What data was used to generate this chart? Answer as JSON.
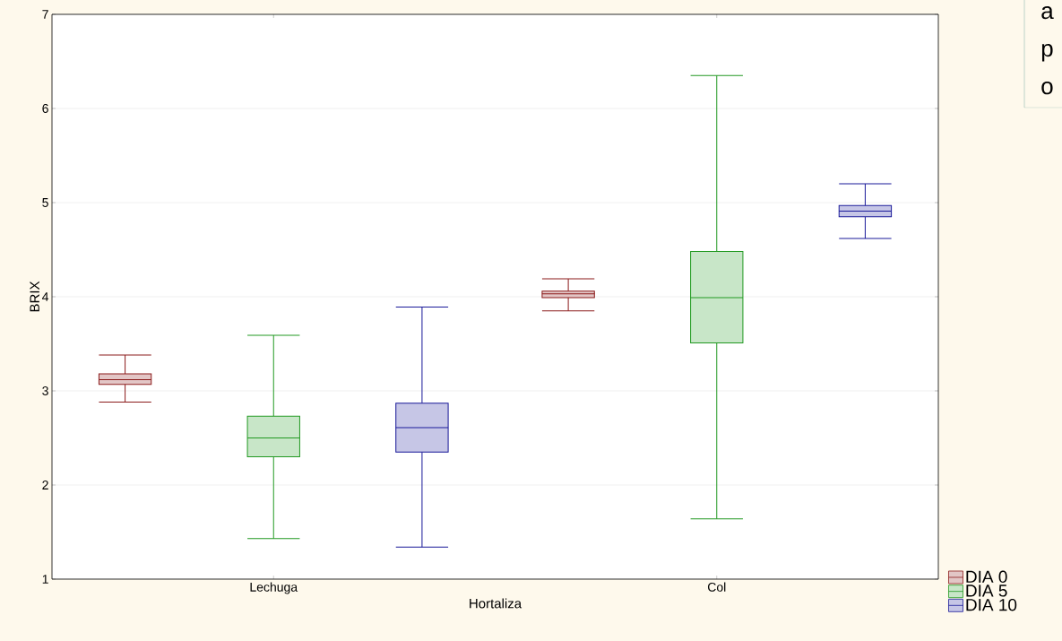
{
  "chart_data": {
    "type": "box",
    "xlabel": "Hortaliza",
    "ylabel": "BRIX",
    "categories": [
      "Lechuga",
      "Col"
    ],
    "ylim": [
      1,
      7
    ],
    "yticks": [
      1,
      2,
      3,
      4,
      5,
      6,
      7
    ],
    "grid": "y",
    "legend": "bottom right",
    "annotations": [
      "a",
      "p",
      "o"
    ],
    "series": [
      {
        "name": "DIA 0",
        "color": "#8b1a1a",
        "boxes": [
          {
            "low": 2.88,
            "q1": 3.07,
            "median": 3.12,
            "q3": 3.18,
            "high": 3.38
          },
          {
            "low": 3.85,
            "q1": 3.99,
            "median": 4.03,
            "q3": 4.06,
            "high": 4.19
          }
        ]
      },
      {
        "name": "DIA 5",
        "color": "#229922",
        "boxes": [
          {
            "low": 1.43,
            "q1": 2.3,
            "median": 2.5,
            "q3": 2.73,
            "high": 3.59
          },
          {
            "low": 1.64,
            "q1": 3.51,
            "median": 3.99,
            "q3": 4.48,
            "high": 6.35
          }
        ]
      },
      {
        "name": "DIA 10",
        "color": "#1a1a99",
        "boxes": [
          {
            "low": 1.34,
            "q1": 2.35,
            "median": 2.61,
            "q3": 2.87,
            "high": 3.89
          },
          {
            "low": 4.62,
            "q1": 4.85,
            "median": 4.91,
            "q3": 4.97,
            "high": 5.2
          }
        ]
      }
    ]
  }
}
